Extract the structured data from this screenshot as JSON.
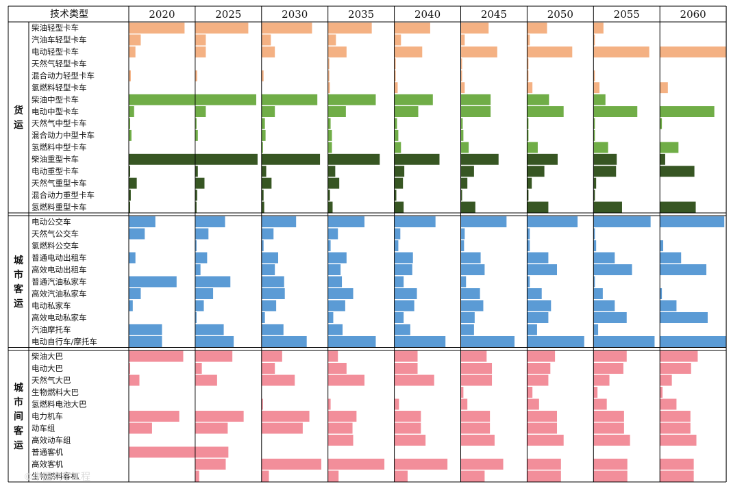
{
  "header_label": "技术类型",
  "watermark": "©中国汽车工程",
  "colors": {
    "light": "#f4b183",
    "medium": "#70ad47",
    "heavy": "#375623",
    "city": "#5b9bd5",
    "intercity": "#f28e9a"
  },
  "chart_data": {
    "type": "bar",
    "title": "",
    "xlabel": "",
    "ylabel": "",
    "unit_note": "relative bar length within each year column (0 = none, 1 = full column width)",
    "xlim": [
      0,
      1
    ],
    "years": [
      "2020",
      "2025",
      "2030",
      "2035",
      "2040",
      "2045",
      "2050",
      "2055",
      "2060"
    ],
    "groups": [
      {
        "name": "货运",
        "rows": [
          {
            "label": "柴油轻型卡车",
            "color": "light",
            "values": [
              0.84,
              0.8,
              0.76,
              0.66,
              0.54,
              0.42,
              0.3,
              0.15,
              0
            ]
          },
          {
            "label": "汽油车轻型卡车",
            "color": "light",
            "values": [
              0.18,
              0.16,
              0.14,
              0.12,
              0.1,
              0.06,
              0.04,
              0.02,
              0
            ]
          },
          {
            "label": "电动轻型卡车",
            "color": "light",
            "values": [
              0.1,
              0.16,
              0.2,
              0.28,
              0.42,
              0.55,
              0.68,
              0.84,
              1.0
            ]
          },
          {
            "label": "天然气轻型卡车",
            "color": "light",
            "values": [
              0,
              0,
              0,
              0.01,
              0.01,
              0.01,
              0.01,
              0,
              0
            ]
          },
          {
            "label": "混合动力轻型卡车",
            "color": "light",
            "values": [
              0.03,
              0.03,
              0.03,
              0.02,
              0.02,
              0.02,
              0.01,
              0.01,
              0
            ]
          },
          {
            "label": "氢燃料轻型卡车",
            "color": "light",
            "values": [
              0,
              0,
              0,
              0.03,
              0.05,
              0.06,
              0.08,
              0.09,
              0.12
            ]
          },
          {
            "label": "柴油中型卡车",
            "color": "medium",
            "values": [
              1.0,
              0.92,
              0.84,
              0.72,
              0.58,
              0.45,
              0.33,
              0.18,
              0
            ]
          },
          {
            "label": "电动中型卡车",
            "color": "medium",
            "values": [
              0.08,
              0.16,
              0.2,
              0.27,
              0.36,
              0.45,
              0.55,
              0.66,
              0.82
            ]
          },
          {
            "label": "天然气中型卡车",
            "color": "medium",
            "values": [
              0.02,
              0.02,
              0.05,
              0.04,
              0.04,
              0.03,
              0.02,
              0.01,
              0.03
            ]
          },
          {
            "label": "混合动力中型卡车",
            "color": "medium",
            "values": [
              0.04,
              0.04,
              0.06,
              0.06,
              0.06,
              0.04,
              0.02,
              0.01,
              0
            ]
          },
          {
            "label": "氢燃料中型卡车",
            "color": "medium",
            "values": [
              0,
              0,
              0.02,
              0.06,
              0.1,
              0.12,
              0.16,
              0.22,
              0.28
            ]
          },
          {
            "label": "柴油重型卡车",
            "color": "heavy",
            "values": [
              1.0,
              0.94,
              0.88,
              0.78,
              0.68,
              0.57,
              0.46,
              0.35,
              0.08
            ]
          },
          {
            "label": "电动重型卡车",
            "color": "heavy",
            "values": [
              0.02,
              0.04,
              0.07,
              0.11,
              0.15,
              0.2,
              0.26,
              0.34,
              0.52
            ]
          },
          {
            "label": "天然气重型卡车",
            "color": "heavy",
            "values": [
              0.12,
              0.14,
              0.15,
              0.17,
              0.13,
              0.1,
              0.07,
              0.04,
              0
            ]
          },
          {
            "label": "混合动力重型卡车",
            "color": "heavy",
            "values": [
              0.03,
              0.03,
              0.03,
              0.03,
              0.03,
              0.02,
              0.01,
              0.01,
              0
            ]
          },
          {
            "label": "氢燃料重型卡车",
            "color": "heavy",
            "values": [
              0.01,
              0.02,
              0.04,
              0.07,
              0.14,
              0.22,
              0.32,
              0.43,
              0.54
            ]
          }
        ]
      },
      {
        "name": "城市客运",
        "rows": [
          {
            "label": "电动公交车",
            "color": "city",
            "values": [
              0.4,
              0.45,
              0.52,
              0.55,
              0.62,
              0.69,
              0.76,
              0.86,
              0.97
            ]
          },
          {
            "label": "天然气公交车",
            "color": "city",
            "values": [
              0.24,
              0.2,
              0.18,
              0.15,
              0.09,
              0.06,
              0.04,
              0.02,
              0
            ]
          },
          {
            "label": "氢燃料公交车",
            "color": "city",
            "values": [
              0,
              0.02,
              0.03,
              0.04,
              0.06,
              0.05,
              0.04,
              0.04,
              0.05
            ]
          },
          {
            "label": "普通电动出租车",
            "color": "city",
            "values": [
              0.1,
              0.18,
              0.25,
              0.28,
              0.28,
              0.3,
              0.32,
              0.32,
              0.32
            ]
          },
          {
            "label": "高效电动出租车",
            "color": "city",
            "values": [
              0,
              0.08,
              0.2,
              0.19,
              0.27,
              0.36,
              0.45,
              0.58,
              0.7
            ]
          },
          {
            "label": "普通汽油私家车",
            "color": "city",
            "values": [
              0.72,
              0.53,
              0.34,
              0.21,
              0.14,
              0.08,
              0.04,
              0.02,
              0
            ]
          },
          {
            "label": "高效汽油私家车",
            "color": "city",
            "values": [
              0.18,
              0.27,
              0.35,
              0.38,
              0.34,
              0.29,
              0.22,
              0.14,
              0.03
            ]
          },
          {
            "label": "电动私家车",
            "color": "city",
            "values": [
              0.06,
              0.13,
              0.22,
              0.26,
              0.3,
              0.34,
              0.36,
              0.32,
              0.25
            ]
          },
          {
            "label": "高效电动私家车",
            "color": "city",
            "values": [
              0,
              0.02,
              0.05,
              0.08,
              0.14,
              0.21,
              0.32,
              0.5,
              0.72
            ]
          },
          {
            "label": "汽油摩托车",
            "color": "city",
            "values": [
              0.5,
              0.43,
              0.33,
              0.22,
              0.24,
              0.2,
              0.15,
              0.07,
              0
            ]
          },
          {
            "label": "电动自行车/摩托车",
            "color": "city",
            "values": [
              0.5,
              0.58,
              0.68,
              0.72,
              0.77,
              0.81,
              0.86,
              0.92,
              1.0
            ]
          }
        ]
      },
      {
        "name": "城市间客运",
        "rows": [
          {
            "label": "柴油大巴",
            "color": "intercity",
            "values": [
              0.82,
              0.56,
              0.31,
              0.15,
              0.35,
              0.39,
              0.42,
              0.5,
              0.57
            ]
          },
          {
            "label": "电动大巴",
            "color": "intercity",
            "values": [
              0.02,
              0.1,
              0.2,
              0.28,
              0.35,
              0.47,
              0.35,
              0.45,
              0.47
            ]
          },
          {
            "label": "天然气大巴",
            "color": "intercity",
            "values": [
              0.16,
              0.33,
              0.5,
              0.55,
              0.6,
              0.47,
              0.32,
              0.24,
              0.18
            ]
          },
          {
            "label": "生物燃料大巴",
            "color": "intercity",
            "values": [
              0,
              0,
              0,
              0,
              0,
              0.04,
              0.08,
              0.06,
              0.04
            ]
          },
          {
            "label": "氢燃料电池大巴",
            "color": "intercity",
            "values": [
              0,
              0,
              0.02,
              0.04,
              0.07,
              0.1,
              0.18,
              0.2,
              0.25
            ]
          },
          {
            "label": "电力机车",
            "color": "intercity",
            "values": [
              0.76,
              0.73,
              0.72,
              0.43,
              0.4,
              0.44,
              0.45,
              0.46,
              0.46
            ]
          },
          {
            "label": "动车组",
            "color": "intercity",
            "values": [
              0.35,
              0.49,
              0.62,
              0.37,
              0.4,
              0.44,
              0.45,
              0.46,
              0.46
            ]
          },
          {
            "label": "高效动车组",
            "color": "intercity",
            "values": [
              0,
              0,
              0,
              0.38,
              0.47,
              0.51,
              0.55,
              0.55,
              0.55
            ]
          },
          {
            "label": "普通客机",
            "color": "intercity",
            "values": [
              1.0,
              0.5,
              0,
              0,
              0,
              0,
              0,
              0,
              0
            ]
          },
          {
            "label": "高效客机",
            "color": "intercity",
            "values": [
              0,
              0.46,
              0.9,
              0.85,
              0.8,
              0.64,
              0.51,
              0.51,
              0.51
            ]
          },
          {
            "label": "生物燃料客机",
            "color": "intercity",
            "values": [
              0,
              0.06,
              0.11,
              0.16,
              0.2,
              0.36,
              0.51,
              0.51,
              0.51
            ]
          }
        ]
      }
    ]
  }
}
